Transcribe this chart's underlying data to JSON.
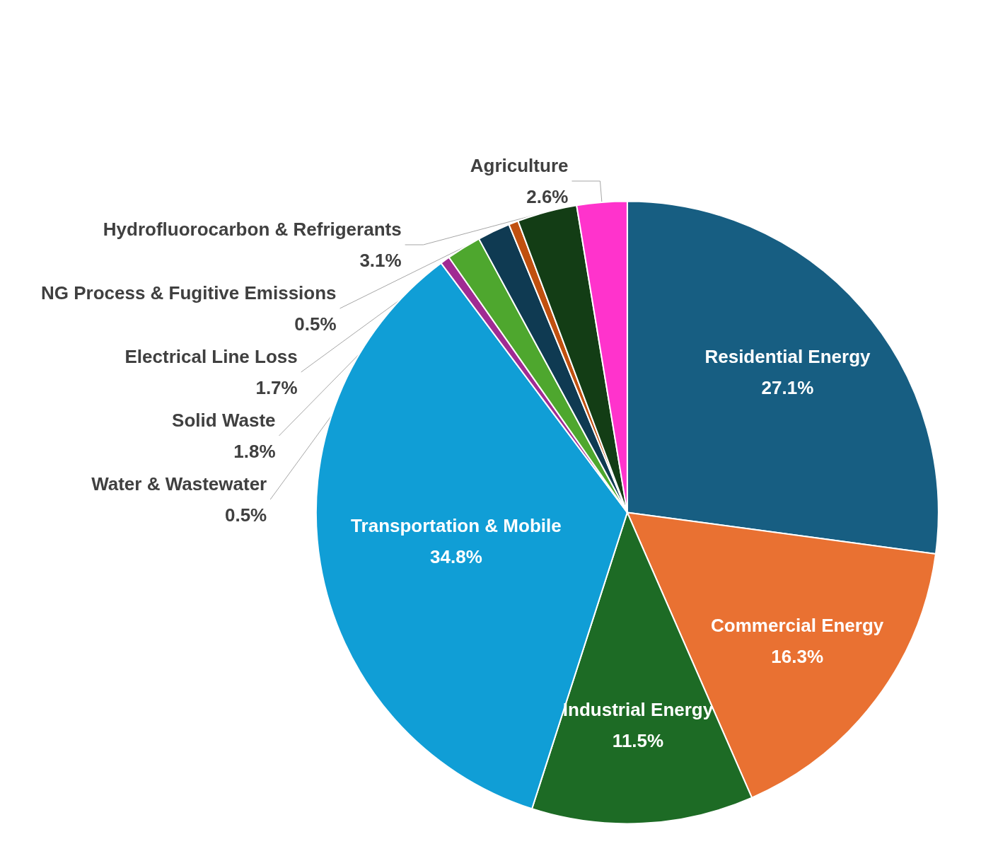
{
  "chart_data": {
    "type": "pie",
    "categories": [
      "Residential Energy",
      "Commercial Energy",
      "Industrial Energy",
      "Transportation & Mobile",
      "Water & Wastewater",
      "Solid Waste",
      "Electrical Line Loss",
      "NG Process & Fugitive Emissions",
      "Hydrofluorocarbon & Refrigerants",
      "Agriculture"
    ],
    "values": [
      27.1,
      16.3,
      11.5,
      34.8,
      0.5,
      1.8,
      1.7,
      0.5,
      3.1,
      2.6
    ],
    "colors": [
      "#175e82",
      "#e97132",
      "#1d6b25",
      "#109ed6",
      "#a02b93",
      "#4ea72e",
      "#0f3a52",
      "#c0500f",
      "#133d15",
      "#ff33cc"
    ],
    "value_labels": [
      "27.1%",
      "16.3%",
      "11.5%",
      "34.8%",
      "0.5%",
      "1.8%",
      "1.7%",
      "0.5%",
      "3.1%",
      "2.6%"
    ],
    "legend": false
  }
}
